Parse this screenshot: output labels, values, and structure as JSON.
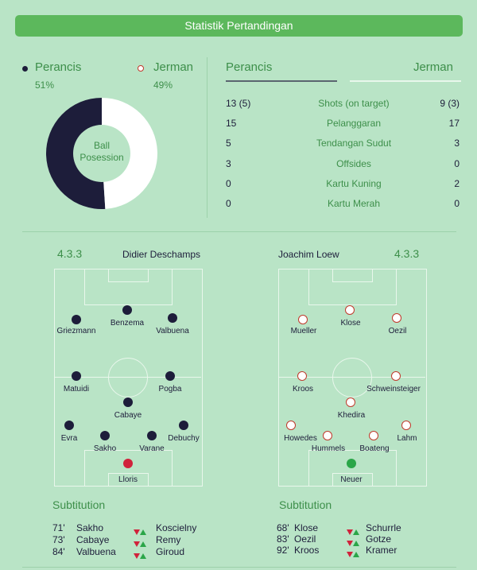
{
  "header": {
    "title": "Statistik Pertandingan"
  },
  "possession": {
    "home": {
      "name": "Perancis",
      "pct": "51%",
      "value": 51
    },
    "away": {
      "name": "Jerman",
      "pct": "49%",
      "value": 49
    },
    "center_label_1": "Ball",
    "center_label_2": "Posession"
  },
  "stats": {
    "home_header": "Perancis",
    "away_header": "Jerman",
    "rows": [
      {
        "home": "13 (5)",
        "label": "Shots (on target)",
        "away": "9 (3)"
      },
      {
        "home": "15",
        "label": "Pelanggaran",
        "away": "17"
      },
      {
        "home": "5",
        "label": "Tendangan Sudut",
        "away": "3"
      },
      {
        "home": "3",
        "label": "Offsides",
        "away": "0"
      },
      {
        "home": "0",
        "label": "Kartu Kuning",
        "away": "2"
      },
      {
        "home": "0",
        "label": "Kartu Merah",
        "away": "0"
      }
    ]
  },
  "home_lineup": {
    "formation": "4.3.3",
    "coach": "Didier Deschamps",
    "players": [
      "Griezmann",
      "Benzema",
      "Valbuena",
      "Matuidi",
      "Pogba",
      "Cabaye",
      "Evra",
      "Sakho",
      "Varane",
      "Debuchy",
      "Lloris"
    ]
  },
  "away_lineup": {
    "formation": "4.3.3",
    "coach": "Joachim Loew",
    "players": [
      "Mueller",
      "Klose",
      "Oezil",
      "Kroos",
      "Schweinsteiger",
      "Khedira",
      "Howedes",
      "Hummels",
      "Boateng",
      "Lahm",
      "Neuer"
    ]
  },
  "home_subs": {
    "title": "Subtitution",
    "rows": [
      {
        "minute": "71'",
        "out": "Sakho",
        "in": "Koscielny"
      },
      {
        "minute": "73'",
        "out": "Cabaye",
        "in": "Remy"
      },
      {
        "minute": "84'",
        "out": "Valbuena",
        "in": "Giroud"
      }
    ]
  },
  "away_subs": {
    "title": "Subtitution",
    "rows": [
      {
        "minute": "68'",
        "out": "Klose",
        "in": "Schurrle"
      },
      {
        "minute": "83'",
        "out": "Oezil",
        "in": "Gotze"
      },
      {
        "minute": "92'",
        "out": "Kroos",
        "in": "Kramer"
      }
    ]
  },
  "colors": {
    "home": "#1d1d3a",
    "away": "#ffffff",
    "accent": "#5cb85c"
  }
}
